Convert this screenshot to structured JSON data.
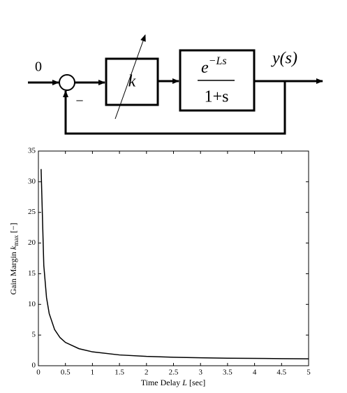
{
  "diagram": {
    "input_label": "0",
    "minus": "−",
    "gain": "k",
    "numerator_base": "e",
    "numerator_exponent": "−Ls",
    "denominator": "1+s",
    "output_label": "y(s)"
  },
  "chart_data": {
    "type": "line",
    "color": "#000000",
    "x": [
      0.05,
      0.1,
      0.15,
      0.2,
      0.3,
      0.4,
      0.5,
      0.75,
      1,
      1.5,
      2,
      2.5,
      3,
      3.5,
      4,
      4.5,
      5
    ],
    "values": [
      32.06,
      16.33,
      11.12,
      8.5,
      5.89,
      4.59,
      3.8,
      2.78,
      2.26,
      1.76,
      1.52,
      1.38,
      1.29,
      1.23,
      1.19,
      1.16,
      1.13
    ],
    "xlim": [
      0,
      5
    ],
    "xticks": [
      0,
      0.5,
      1,
      1.5,
      2,
      2.5,
      3,
      3.5,
      4,
      4.5,
      5
    ],
    "ylim": [
      0,
      35
    ],
    "yticks": [
      0,
      5,
      10,
      15,
      20,
      25,
      30,
      35
    ],
    "xlabel_text": "Time Delay",
    "xlabel_symbol": "L",
    "xlabel_unit": "[sec]",
    "ylabel_text": "Gain Margin",
    "ylabel_symbol": "k",
    "ylabel_subscript": "max",
    "ylabel_unit": "[−]"
  }
}
